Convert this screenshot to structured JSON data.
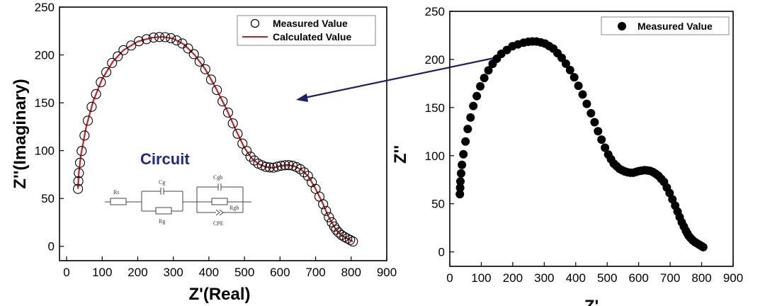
{
  "chart_data": [
    {
      "type": "scatter",
      "panel": "left",
      "xlabel": "Z'(Real)",
      "ylabel": "Z''(Imaginary)",
      "xlim": [
        -20,
        900
      ],
      "ylim": [
        -15,
        250
      ],
      "xticks": [
        0,
        100,
        200,
        300,
        400,
        500,
        600,
        700,
        800,
        900
      ],
      "yticks": [
        0,
        50,
        100,
        150,
        200,
        250
      ],
      "legend": {
        "position": "top-right",
        "entries": [
          "Measured Value",
          "Calculated Value"
        ]
      },
      "series": [
        {
          "name": "Measured Value",
          "style": "open-circle",
          "color": "#000000"
        },
        {
          "name": "Calculated Value",
          "style": "line",
          "color": "#cc1f1f"
        }
      ],
      "annotation": {
        "title": "Circuit",
        "components": [
          "Rs",
          "Cg",
          "Rg",
          "Cgb",
          "Rgb",
          "CPE"
        ]
      }
    },
    {
      "type": "scatter",
      "panel": "right",
      "xlabel": "Z'",
      "ylabel": "Z''",
      "xlim": [
        0,
        900
      ],
      "ylim": [
        -15,
        250
      ],
      "xticks": [
        0,
        100,
        200,
        300,
        400,
        500,
        600,
        700,
        800,
        900
      ],
      "yticks": [
        0,
        50,
        100,
        150,
        200,
        250
      ],
      "legend": {
        "position": "top-right",
        "entries": [
          "Measured Value"
        ]
      },
      "series": [
        {
          "name": "Measured Value",
          "style": "filled-circle",
          "color": "#000000"
        }
      ]
    }
  ],
  "curve": [
    [
      32,
      60
    ],
    [
      34,
      75
    ],
    [
      40,
      95
    ],
    [
      55,
      125
    ],
    [
      75,
      152
    ],
    [
      100,
      175
    ],
    [
      130,
      193
    ],
    [
      160,
      205
    ],
    [
      200,
      214
    ],
    [
      240,
      218
    ],
    [
      270,
      219
    ],
    [
      300,
      217
    ],
    [
      330,
      211
    ],
    [
      360,
      200
    ],
    [
      390,
      185
    ],
    [
      420,
      165
    ],
    [
      450,
      143
    ],
    [
      475,
      122
    ],
    [
      500,
      103
    ],
    [
      520,
      92
    ],
    [
      540,
      86
    ],
    [
      560,
      83
    ],
    [
      580,
      82
    ],
    [
      600,
      84
    ],
    [
      620,
      85
    ],
    [
      640,
      84
    ],
    [
      660,
      80
    ],
    [
      680,
      73
    ],
    [
      700,
      60
    ],
    [
      720,
      45
    ],
    [
      735,
      32
    ],
    [
      750,
      22
    ],
    [
      760,
      16
    ],
    [
      775,
      11
    ],
    [
      790,
      8
    ],
    [
      805,
      5
    ]
  ],
  "colors": {
    "arrow": "#1b1f6e",
    "calculated": "#cc1f1f",
    "circuit_title": "#1f2a8c"
  }
}
